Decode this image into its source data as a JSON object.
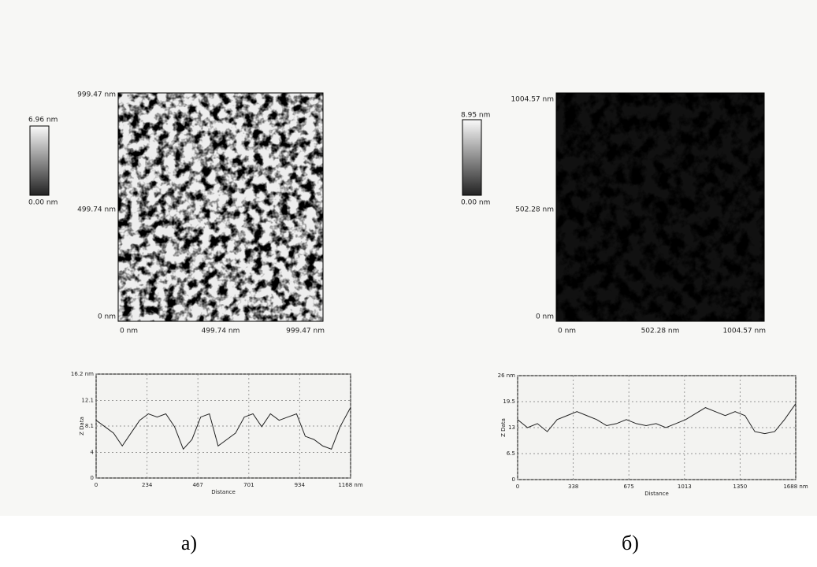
{
  "panels": [
    {
      "caption": "а)",
      "colorbar": {
        "max_label": "6.96 nm",
        "min_label": "0.00 nm"
      },
      "image": {
        "y_labels": [
          "999.47 nm",
          "499.74 nm",
          "0 nm"
        ],
        "x_labels": [
          "0 nm",
          "499.74 nm",
          "999.47 nm"
        ]
      }
    },
    {
      "caption": "б)",
      "colorbar": {
        "max_label": "8.95 nm",
        "min_label": "0.00 nm"
      },
      "image": {
        "y_labels": [
          "1004.57 nm",
          "502.28 nm",
          "0 nm"
        ],
        "x_labels": [
          "0 nm",
          "502.28 nm",
          "1004.57 nm"
        ]
      }
    }
  ],
  "chart_data": [
    {
      "type": "line",
      "x_label": "Distance",
      "y_label": "Z Data",
      "color": "#222222",
      "grid": true,
      "x": [
        0,
        40,
        80,
        120,
        160,
        200,
        240,
        280,
        320,
        360,
        400,
        440,
        480,
        520,
        560,
        600,
        640,
        680,
        720,
        760,
        800,
        840,
        880,
        920,
        960,
        1000,
        1040,
        1080,
        1120,
        1168
      ],
      "values": [
        9,
        8,
        7,
        5,
        7,
        9,
        10,
        9.5,
        10,
        8,
        4.5,
        6,
        9.5,
        10,
        5,
        6,
        7,
        9.5,
        10,
        8,
        10,
        9,
        9.5,
        10,
        6.5,
        6,
        5,
        4.5,
        8,
        11
      ],
      "xlim": [
        0,
        1168
      ],
      "xticks": [
        0,
        234,
        467,
        701,
        934,
        {
          "value": 1168,
          "label": "1168 nm"
        }
      ],
      "ylim": [
        0,
        16.2
      ],
      "yticks": [
        0,
        4,
        8.1,
        12.1,
        {
          "value": 16.2,
          "label": "16.2 nm"
        }
      ]
    },
    {
      "type": "line",
      "x_label": "Distance",
      "y_label": "Z Data",
      "color": "#222222",
      "grid": true,
      "x": [
        0,
        60,
        120,
        180,
        240,
        300,
        360,
        420,
        480,
        540,
        600,
        660,
        720,
        780,
        840,
        900,
        960,
        1020,
        1080,
        1140,
        1200,
        1260,
        1320,
        1380,
        1440,
        1500,
        1560,
        1620,
        1688
      ],
      "values": [
        15,
        13,
        14,
        12,
        15,
        16,
        17,
        16,
        15,
        13.5,
        14,
        15,
        14,
        13.5,
        14,
        13,
        14,
        15,
        16.5,
        18,
        17,
        16,
        17,
        16,
        12,
        11.5,
        12,
        15,
        19
      ],
      "xlim": [
        0,
        1688
      ],
      "xticks": [
        0,
        338,
        675,
        1013,
        1350,
        {
          "value": 1688,
          "label": "1688 nm"
        }
      ],
      "ylim": [
        0,
        26
      ],
      "yticks": [
        0,
        6.5,
        13,
        19.5,
        {
          "value": 26,
          "label": "26 nm"
        }
      ]
    }
  ]
}
